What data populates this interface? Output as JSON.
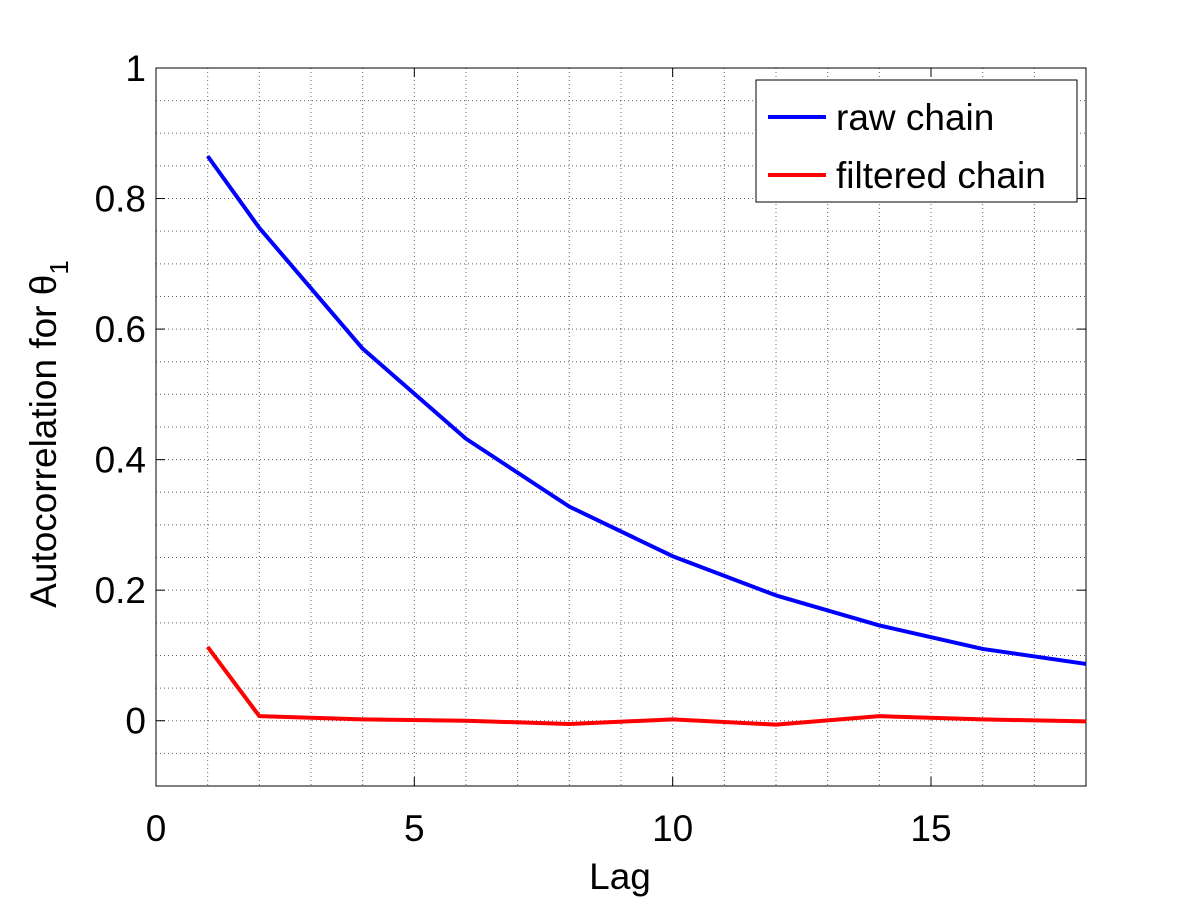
{
  "chart_data": {
    "type": "line",
    "xlabel": "Lag",
    "ylabel": "Autocorrelation for θ",
    "ylabel_subscript": "1",
    "xlim": [
      0,
      18
    ],
    "ylim": [
      -0.1,
      1
    ],
    "xticks": [
      0,
      5,
      10,
      15
    ],
    "xtick_labels": [
      "0",
      "5",
      "10",
      "15"
    ],
    "yticks": [
      0,
      0.2,
      0.4,
      0.6,
      0.8,
      1
    ],
    "ytick_labels": [
      "0",
      "0.2",
      "0.4",
      "0.6",
      "0.8",
      "1"
    ],
    "grid": "minor dotted",
    "legend_position": "top-right",
    "series": [
      {
        "name": "raw chain",
        "color": "#0000ff",
        "x": [
          1,
          2,
          4,
          6,
          8,
          10,
          12,
          14,
          16,
          18
        ],
        "y": [
          0.865,
          0.755,
          0.57,
          0.432,
          0.328,
          0.252,
          0.192,
          0.146,
          0.11,
          0.087
        ]
      },
      {
        "name": "filtered chain",
        "color": "#ff0000",
        "x": [
          1,
          2,
          4,
          6,
          8,
          10,
          12,
          14,
          16,
          18
        ],
        "y": [
          0.113,
          0.007,
          0.002,
          0.0,
          -0.005,
          0.002,
          -0.006,
          0.007,
          0.002,
          -0.001
        ]
      }
    ]
  }
}
